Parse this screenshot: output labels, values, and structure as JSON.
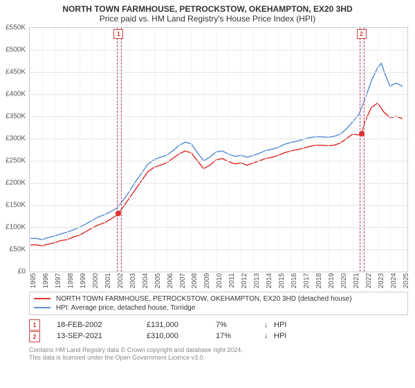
{
  "title": {
    "line1": "NORTH TOWN FARMHOUSE, PETROCKSTOW, OKEHAMPTON, EX20 3HD",
    "line2": "Price paid vs. HM Land Registry's House Price Index (HPI)",
    "fontsize_line1": 12,
    "fontsize_line2": 12,
    "color": "#333333"
  },
  "chart": {
    "type": "line",
    "background_color": "#ffffff",
    "grid_color": "#e6e6e6",
    "vgrid_color": "#f2f2f2",
    "border_color": "#d0d0d0",
    "y": {
      "min": 0,
      "max": 550000,
      "tick_step": 50000,
      "tick_labels": [
        "£0",
        "£50K",
        "£100K",
        "£150K",
        "£200K",
        "£250K",
        "£300K",
        "£350K",
        "£400K",
        "£450K",
        "£500K",
        "£550K"
      ],
      "label_fontsize": 10,
      "label_color": "#555555"
    },
    "x": {
      "start_year": 1995,
      "end_year": 2025.4,
      "tick_years": [
        1995,
        1996,
        1997,
        1998,
        1999,
        2000,
        2001,
        2002,
        2003,
        2004,
        2005,
        2006,
        2007,
        2008,
        2009,
        2010,
        2011,
        2012,
        2013,
        2014,
        2015,
        2016,
        2017,
        2018,
        2019,
        2020,
        2021,
        2022,
        2023,
        2024,
        2025
      ],
      "label_fontsize": 10,
      "label_color": "#555555"
    },
    "highlight_bands": [
      {
        "from_year": 2002.0,
        "to_year": 2002.3,
        "dash_color": "#d04040",
        "fill_color": "rgba(200,220,250,0.25)"
      },
      {
        "from_year": 2021.55,
        "to_year": 2021.85,
        "dash_color": "#d04040",
        "fill_color": "rgba(200,220,250,0.25)"
      }
    ],
    "markers": [
      {
        "label": "1",
        "year": 2002.15,
        "box_border": "#d04040",
        "box_fontsize": 9
      },
      {
        "label": "2",
        "year": 2021.7,
        "box_border": "#d04040",
        "box_fontsize": 9
      }
    ],
    "sale_points": [
      {
        "year": 2002.13,
        "value": 131000,
        "color": "#e03030"
      },
      {
        "year": 2021.7,
        "value": 310000,
        "color": "#e03030"
      }
    ],
    "series": [
      {
        "name": "property",
        "label": "NORTH TOWN FARMHOUSE, PETROCKSTOW, OKEHAMPTON, EX20 3HD (detached house)",
        "color": "#e03030",
        "line_width": 1.5,
        "data": [
          {
            "year": 1995.0,
            "v": 60000
          },
          {
            "year": 1995.5,
            "v": 60500
          },
          {
            "year": 1996.0,
            "v": 58000
          },
          {
            "year": 1996.5,
            "v": 62000
          },
          {
            "year": 1997.0,
            "v": 65000
          },
          {
            "year": 1997.5,
            "v": 70000
          },
          {
            "year": 1998.0,
            "v": 72000
          },
          {
            "year": 1998.5,
            "v": 78000
          },
          {
            "year": 1999.0,
            "v": 82000
          },
          {
            "year": 1999.5,
            "v": 90000
          },
          {
            "year": 2000.0,
            "v": 98000
          },
          {
            "year": 2000.5,
            "v": 105000
          },
          {
            "year": 2001.0,
            "v": 110000
          },
          {
            "year": 2001.5,
            "v": 118000
          },
          {
            "year": 2002.0,
            "v": 127000
          },
          {
            "year": 2002.13,
            "v": 131000
          },
          {
            "year": 2002.5,
            "v": 145000
          },
          {
            "year": 2003.0,
            "v": 165000
          },
          {
            "year": 2003.5,
            "v": 185000
          },
          {
            "year": 2004.0,
            "v": 205000
          },
          {
            "year": 2004.5,
            "v": 225000
          },
          {
            "year": 2005.0,
            "v": 235000
          },
          {
            "year": 2005.5,
            "v": 240000
          },
          {
            "year": 2006.0,
            "v": 245000
          },
          {
            "year": 2006.5,
            "v": 255000
          },
          {
            "year": 2007.0,
            "v": 265000
          },
          {
            "year": 2007.5,
            "v": 272000
          },
          {
            "year": 2008.0,
            "v": 268000
          },
          {
            "year": 2008.5,
            "v": 250000
          },
          {
            "year": 2009.0,
            "v": 232000
          },
          {
            "year": 2009.5,
            "v": 240000
          },
          {
            "year": 2010.0,
            "v": 252000
          },
          {
            "year": 2010.5,
            "v": 255000
          },
          {
            "year": 2011.0,
            "v": 248000
          },
          {
            "year": 2011.5,
            "v": 243000
          },
          {
            "year": 2012.0,
            "v": 245000
          },
          {
            "year": 2012.5,
            "v": 240000
          },
          {
            "year": 2013.0,
            "v": 245000
          },
          {
            "year": 2013.5,
            "v": 250000
          },
          {
            "year": 2014.0,
            "v": 255000
          },
          {
            "year": 2014.5,
            "v": 258000
          },
          {
            "year": 2015.0,
            "v": 262000
          },
          {
            "year": 2015.5,
            "v": 268000
          },
          {
            "year": 2016.0,
            "v": 272000
          },
          {
            "year": 2016.5,
            "v": 275000
          },
          {
            "year": 2017.0,
            "v": 278000
          },
          {
            "year": 2017.5,
            "v": 282000
          },
          {
            "year": 2018.0,
            "v": 285000
          },
          {
            "year": 2018.5,
            "v": 285000
          },
          {
            "year": 2019.0,
            "v": 284000
          },
          {
            "year": 2019.5,
            "v": 285000
          },
          {
            "year": 2020.0,
            "v": 290000
          },
          {
            "year": 2020.5,
            "v": 300000
          },
          {
            "year": 2021.0,
            "v": 310000
          },
          {
            "year": 2021.5,
            "v": 308000
          },
          {
            "year": 2021.7,
            "v": 310000
          },
          {
            "year": 2022.0,
            "v": 340000
          },
          {
            "year": 2022.5,
            "v": 370000
          },
          {
            "year": 2023.0,
            "v": 380000
          },
          {
            "year": 2023.5,
            "v": 360000
          },
          {
            "year": 2024.0,
            "v": 347000
          },
          {
            "year": 2024.5,
            "v": 350000
          },
          {
            "year": 2025.0,
            "v": 345000
          }
        ]
      },
      {
        "name": "hpi",
        "label": "HPI: Average price, detached house, Torridge",
        "color": "#5b8fd6",
        "line_width": 1.5,
        "data": [
          {
            "year": 1995.0,
            "v": 75000
          },
          {
            "year": 1995.5,
            "v": 75000
          },
          {
            "year": 1996.0,
            "v": 72000
          },
          {
            "year": 1996.5,
            "v": 77000
          },
          {
            "year": 1997.0,
            "v": 80000
          },
          {
            "year": 1997.5,
            "v": 85000
          },
          {
            "year": 1998.0,
            "v": 89000
          },
          {
            "year": 1998.5,
            "v": 94000
          },
          {
            "year": 1999.0,
            "v": 100000
          },
          {
            "year": 1999.5,
            "v": 107000
          },
          {
            "year": 2000.0,
            "v": 115000
          },
          {
            "year": 2000.5,
            "v": 123000
          },
          {
            "year": 2001.0,
            "v": 128000
          },
          {
            "year": 2001.5,
            "v": 135000
          },
          {
            "year": 2002.0,
            "v": 143000
          },
          {
            "year": 2002.5,
            "v": 160000
          },
          {
            "year": 2003.0,
            "v": 180000
          },
          {
            "year": 2003.5,
            "v": 202000
          },
          {
            "year": 2004.0,
            "v": 222000
          },
          {
            "year": 2004.5,
            "v": 242000
          },
          {
            "year": 2005.0,
            "v": 252000
          },
          {
            "year": 2005.5,
            "v": 258000
          },
          {
            "year": 2006.0,
            "v": 262000
          },
          {
            "year": 2006.5,
            "v": 272000
          },
          {
            "year": 2007.0,
            "v": 284000
          },
          {
            "year": 2007.5,
            "v": 292000
          },
          {
            "year": 2008.0,
            "v": 288000
          },
          {
            "year": 2008.5,
            "v": 268000
          },
          {
            "year": 2009.0,
            "v": 250000
          },
          {
            "year": 2009.5,
            "v": 258000
          },
          {
            "year": 2010.0,
            "v": 270000
          },
          {
            "year": 2010.5,
            "v": 272000
          },
          {
            "year": 2011.0,
            "v": 265000
          },
          {
            "year": 2011.5,
            "v": 260000
          },
          {
            "year": 2012.0,
            "v": 262000
          },
          {
            "year": 2012.5,
            "v": 258000
          },
          {
            "year": 2013.0,
            "v": 262000
          },
          {
            "year": 2013.5,
            "v": 267000
          },
          {
            "year": 2014.0,
            "v": 273000
          },
          {
            "year": 2014.5,
            "v": 276000
          },
          {
            "year": 2015.0,
            "v": 280000
          },
          {
            "year": 2015.5,
            "v": 287000
          },
          {
            "year": 2016.0,
            "v": 291000
          },
          {
            "year": 2016.5,
            "v": 294000
          },
          {
            "year": 2017.0,
            "v": 298000
          },
          {
            "year": 2017.5,
            "v": 302000
          },
          {
            "year": 2018.0,
            "v": 304000
          },
          {
            "year": 2018.5,
            "v": 304000
          },
          {
            "year": 2019.0,
            "v": 303000
          },
          {
            "year": 2019.5,
            "v": 305000
          },
          {
            "year": 2020.0,
            "v": 310000
          },
          {
            "year": 2020.5,
            "v": 322000
          },
          {
            "year": 2021.0,
            "v": 338000
          },
          {
            "year": 2021.5,
            "v": 355000
          },
          {
            "year": 2022.0,
            "v": 390000
          },
          {
            "year": 2022.5,
            "v": 430000
          },
          {
            "year": 2023.0,
            "v": 460000
          },
          {
            "year": 2023.3,
            "v": 470000
          },
          {
            "year": 2023.6,
            "v": 445000
          },
          {
            "year": 2024.0,
            "v": 418000
          },
          {
            "year": 2024.5,
            "v": 425000
          },
          {
            "year": 2025.0,
            "v": 418000
          }
        ]
      }
    ]
  },
  "legend": {
    "border_color": "#cccccc",
    "fontsize": 10,
    "items": [
      {
        "color": "#e03030",
        "label": "NORTH TOWN FARMHOUSE, PETROCKSTOW, OKEHAMPTON, EX20 3HD (detached house)"
      },
      {
        "color": "#5b8fd6",
        "label": "HPI: Average price, detached house, Torridge"
      }
    ]
  },
  "sales": {
    "fontsize": 11,
    "idx_border": "#d04040",
    "rows": [
      {
        "idx": "1",
        "date": "18-FEB-2002",
        "price": "£131,000",
        "pct": "7%",
        "arrow": "↓",
        "hpi": "HPI"
      },
      {
        "idx": "2",
        "date": "13-SEP-2021",
        "price": "£310,000",
        "pct": "17%",
        "arrow": "↓",
        "hpi": "HPI"
      }
    ]
  },
  "credits": {
    "fontsize": 9,
    "color": "#888888",
    "line1": "Contains HM Land Registry data © Crown copyright and database right 2024.",
    "line2": "This data is licensed under the Open Government Licence v3.0."
  }
}
